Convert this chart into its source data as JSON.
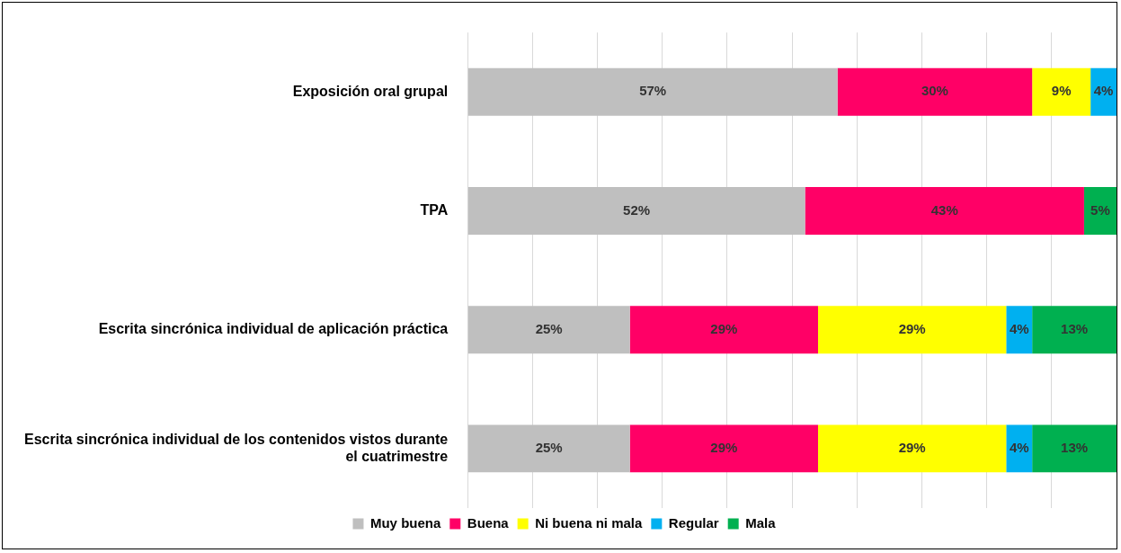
{
  "chart_data": {
    "type": "bar",
    "orientation": "horizontal",
    "stacked": true,
    "categories": [
      "Exposición oral grupal",
      "TPA",
      "Escrita sincrónica individual de aplicación práctica",
      "Escrita sincrónica individual de los contenidos vistos durante el cuatrimestre"
    ],
    "series": [
      {
        "name": "Muy buena",
        "color": "#bfbfbf",
        "values": [
          57,
          52,
          25,
          25
        ],
        "value_labels": [
          "57%",
          "52%",
          "25%",
          "25%"
        ]
      },
      {
        "name": "Buena",
        "color": "#ff0066",
        "values": [
          30,
          43,
          29,
          29
        ],
        "value_labels": [
          "30%",
          "43%",
          "29%",
          "29%"
        ]
      },
      {
        "name": "Ni buena ni mala",
        "color": "#ffff00",
        "values": [
          9,
          null,
          29,
          29
        ],
        "value_labels": [
          "9%",
          null,
          "29%",
          "29%"
        ]
      },
      {
        "name": "Regular",
        "color": "#00b0f0",
        "values": [
          4,
          null,
          4,
          4
        ],
        "value_labels": [
          "4%",
          null,
          "4%",
          "4%"
        ]
      },
      {
        "name": "Mala",
        "color": "#00b050",
        "values": [
          null,
          5,
          13,
          13
        ],
        "value_labels": [
          null,
          "5%",
          "13%",
          "13%"
        ]
      }
    ],
    "xlim": [
      0,
      100
    ],
    "xticks": [
      {
        "value": 0,
        "label": null
      },
      {
        "value": 10,
        "label": null
      },
      {
        "value": 20,
        "label": null
      },
      {
        "value": 30,
        "label": null
      },
      {
        "value": 40,
        "label": null
      },
      {
        "value": 50,
        "label": null
      },
      {
        "value": 60,
        "label": null
      },
      {
        "value": 70,
        "label": null
      },
      {
        "value": 80,
        "label": null
      },
      {
        "value": 90,
        "label": null
      },
      {
        "value": 100,
        "label": null
      }
    ],
    "grid": "x",
    "tick_labels": "y",
    "legend": "bottom"
  }
}
